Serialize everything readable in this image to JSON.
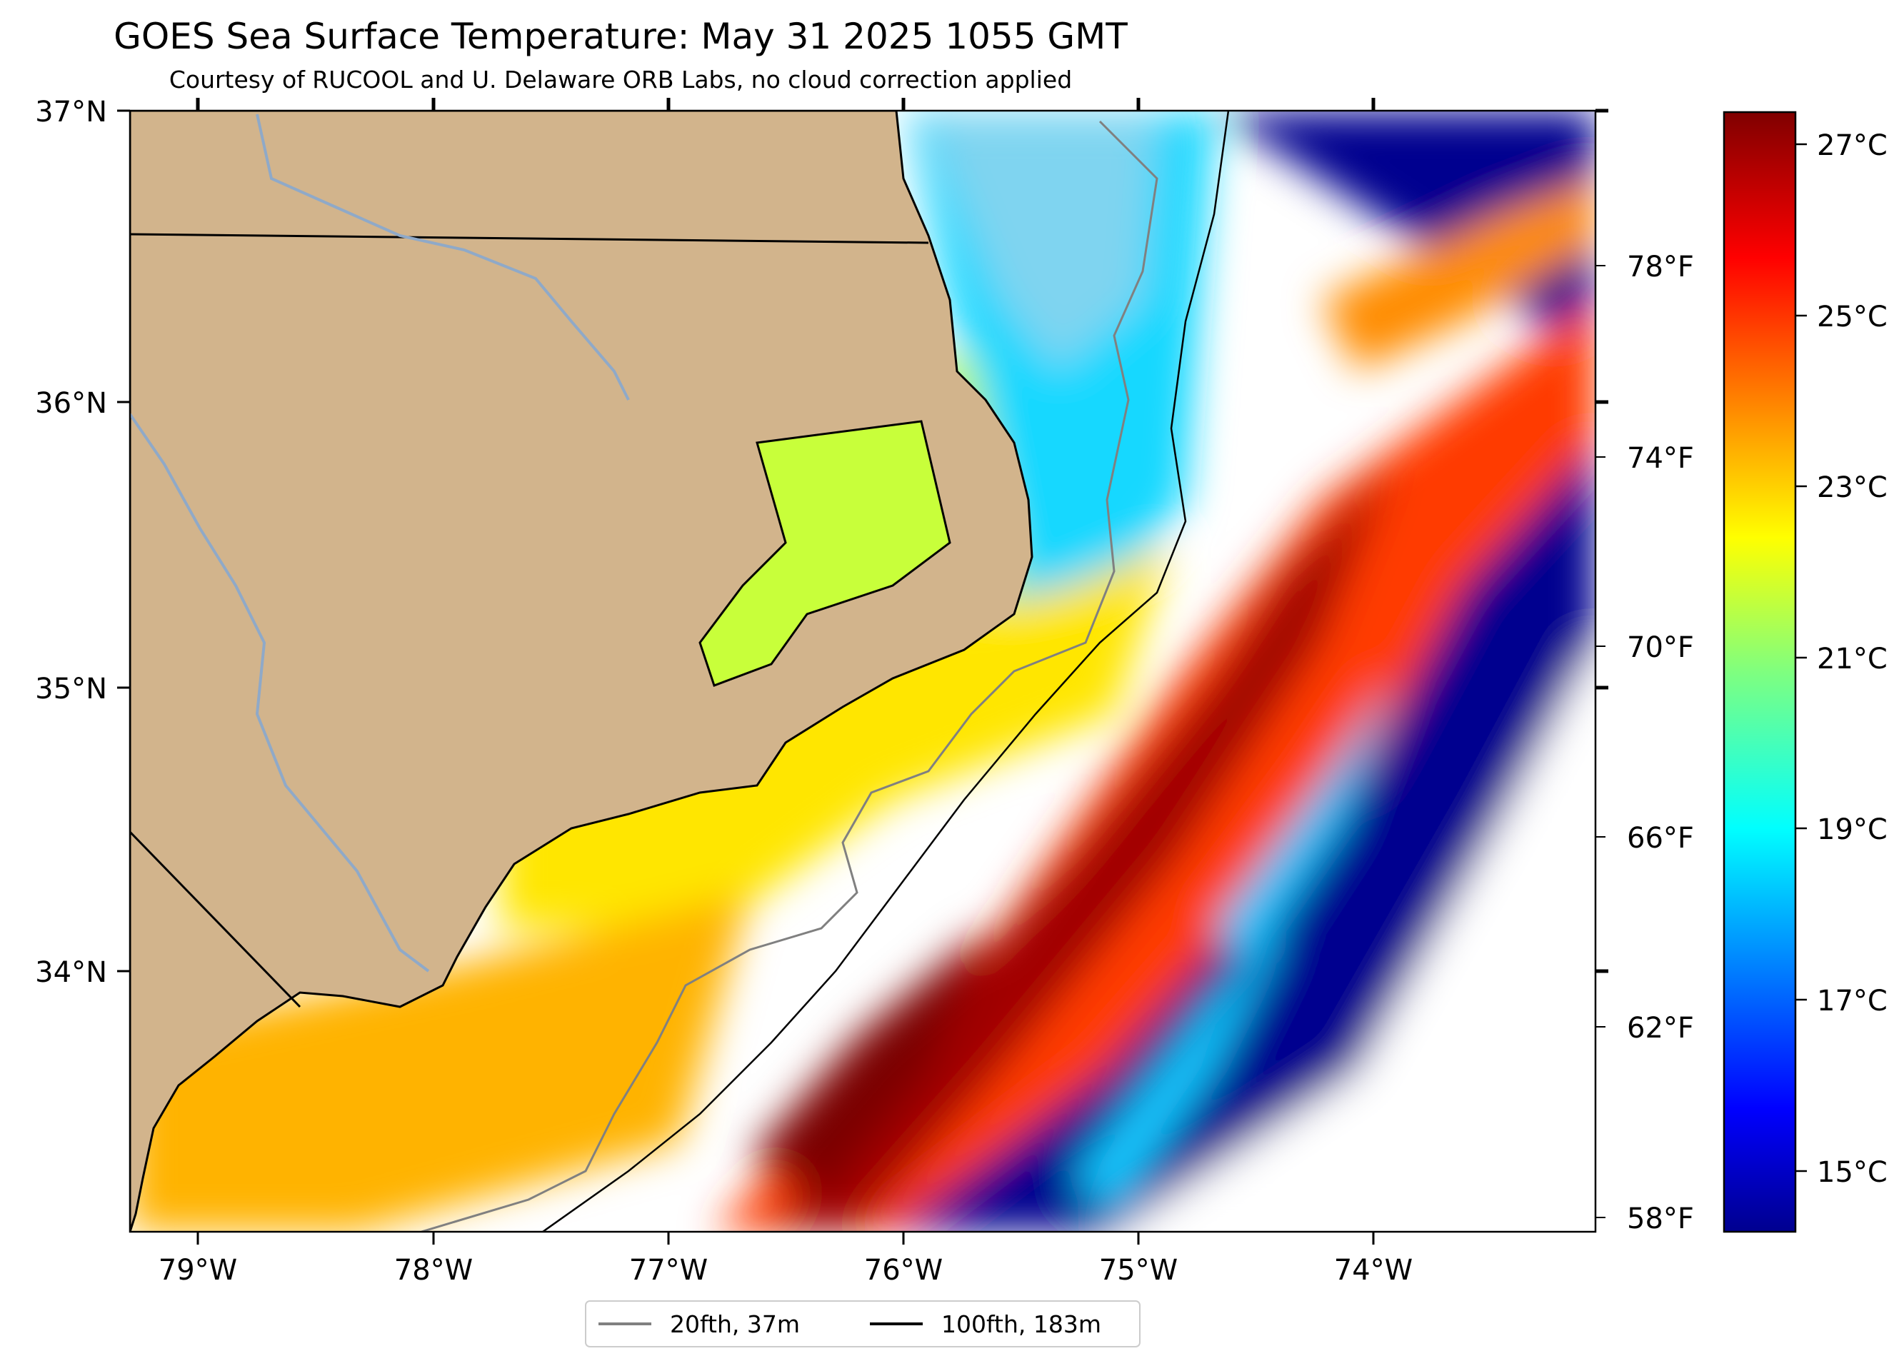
{
  "title": "GOES Sea Surface Temperature: May 31 2025 1055 GMT",
  "subtitle": "Courtesy of RUCOOL and U. Delaware ORB Labs, no cloud correction applied",
  "map": {
    "lon_range": [
      -79.28,
      -73.07
    ],
    "lat_range": [
      33.1,
      37.0
    ],
    "lon_ticks": [
      "79°W",
      "78°W",
      "77°W",
      "76°W",
      "75°W",
      "74°W"
    ],
    "lat_ticks": [
      "37°N",
      "36°N",
      "35°N",
      "34°N"
    ],
    "land_color": "#d2b48c",
    "colormap": "jet"
  },
  "colorbar": {
    "celsius_ticks": [
      "27°C",
      "25°C",
      "23°C",
      "21°C",
      "19°C",
      "17°C",
      "15°C"
    ],
    "fahrenheit_ticks": [
      "78°F",
      "74°F",
      "70°F",
      "66°F",
      "62°F",
      "58°F"
    ],
    "range_c": [
      14.2,
      27.5
    ]
  },
  "legend": {
    "items": [
      {
        "label": "20fth, 37m",
        "color": "#808080"
      },
      {
        "label": "100fth, 183m",
        "color": "#000000"
      }
    ]
  }
}
